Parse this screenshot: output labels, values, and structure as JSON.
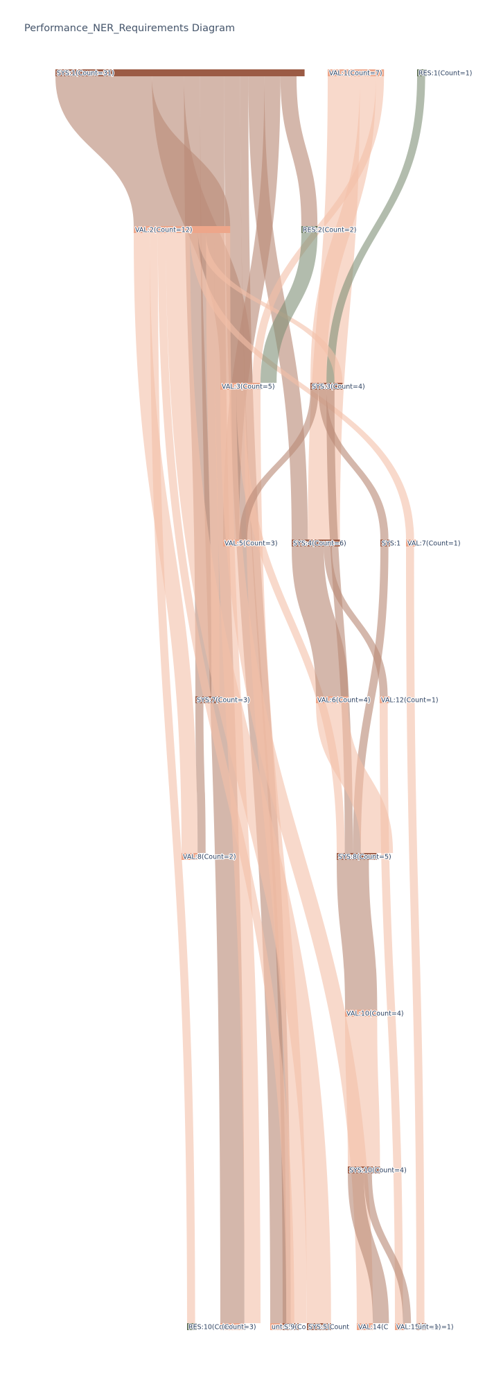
{
  "title": "Performance_NER_Requirements Diagram",
  "colors": {
    "SYS": "#9b5b45",
    "VAL": "#eda68a",
    "RES": "#5d6e53",
    "link_SYS": "#b98a78",
    "link_VAL": "#f3bfa8",
    "link_VAL_dark": "#ee9f7c",
    "link_RES": "#7f8f76"
  },
  "nodes": [
    {
      "id": "SYS1",
      "label": "SYS:1(Count=31)",
      "type": "SYS",
      "count": 31,
      "level": 0
    },
    {
      "id": "VAL1",
      "label": "VAL:1(Count=7)",
      "type": "VAL",
      "count": 7,
      "level": 0
    },
    {
      "id": "RES1",
      "label": "RES:1(Count=1)",
      "type": "RES",
      "count": 1,
      "level": 0
    },
    {
      "id": "VAL2",
      "label": "VAL:2(Count=12)",
      "type": "VAL",
      "count": 12,
      "level": 1
    },
    {
      "id": "RES2",
      "label": "RES:2(Count=2)",
      "type": "RES",
      "count": 2,
      "level": 1
    },
    {
      "id": "VAL3",
      "label": "VAL:3(Count=5)",
      "type": "VAL",
      "count": 5,
      "level": 2
    },
    {
      "id": "SYS3",
      "label": "SYS:3(Count=4)",
      "type": "SYS",
      "count": 4,
      "level": 2
    },
    {
      "id": "VAL5",
      "label": "VAL:5(Count=3)",
      "type": "VAL",
      "count": 3,
      "level": 3
    },
    {
      "id": "SYS4",
      "label": "SYS:4(Count=6)",
      "type": "SYS",
      "count": 6,
      "level": 3
    },
    {
      "id": "SYS1b",
      "label": "SYS:1",
      "type": "SYS",
      "count": 1,
      "level": 3
    },
    {
      "id": "VAL7",
      "label": "VAL:7(Count=1)",
      "type": "VAL",
      "count": 1,
      "level": 3
    },
    {
      "id": "SYS7",
      "label": "SYS:7(Count=3)",
      "type": "SYS",
      "count": 3,
      "level": 4
    },
    {
      "id": "VAL6",
      "label": "VAL:6(Count=4)",
      "type": "VAL",
      "count": 4,
      "level": 4
    },
    {
      "id": "VAL12",
      "label": "VAL:12(Count=1)",
      "type": "VAL",
      "count": 1,
      "level": 4
    },
    {
      "id": "VAL8",
      "label": "VAL:8(Count=2)",
      "type": "VAL",
      "count": 2,
      "level": 5
    },
    {
      "id": "SYS8",
      "label": "SYS:8(Count=5)",
      "type": "SYS",
      "count": 5,
      "level": 5
    },
    {
      "id": "VAL10",
      "label": "VAL:10(Count=4)",
      "type": "VAL",
      "count": 4,
      "level": 6
    },
    {
      "id": "SYS10",
      "label": "SYS:10(Count=4)",
      "type": "SYS",
      "count": 4,
      "level": 7
    },
    {
      "id": "RES10",
      "label": "RES:10(Count=1)",
      "type": "RES",
      "count": 1,
      "level": 8
    },
    {
      "id": "BA",
      "label": "(Count=3)",
      "type": "VAL",
      "count": 3,
      "level": 8
    },
    {
      "id": "BB",
      "label": "unt=3)",
      "type": "VAL",
      "count": 3,
      "level": 8
    },
    {
      "id": "BC",
      "label": "S:9(Co",
      "type": "SYS",
      "count": 2,
      "level": 8
    },
    {
      "id": "BD",
      "label": "SYS:5(Count",
      "type": "SYS",
      "count": 3,
      "level": 8
    },
    {
      "id": "BE",
      "label": "VAL:14(C",
      "type": "VAL",
      "count": 2,
      "level": 8
    },
    {
      "id": "BF",
      "label": "VAL:15(Count=1)",
      "type": "VAL",
      "count": 1,
      "level": 8
    },
    {
      "id": "BG",
      "label": "unt=1)",
      "type": "SYS",
      "count": 1,
      "level": 8
    }
  ],
  "links": [
    {
      "source": "SYS1",
      "target": "VAL2",
      "value": 12
    },
    {
      "source": "SYS1",
      "target": "VAL3",
      "value": 4
    },
    {
      "source": "SYS1",
      "target": "SYS7",
      "value": 2
    },
    {
      "source": "SYS1",
      "target": "BA",
      "value": 3
    },
    {
      "source": "SYS1",
      "target": "BB",
      "value": 2
    },
    {
      "source": "SYS1",
      "target": "BC",
      "value": 1
    },
    {
      "source": "SYS1",
      "target": "SYS4",
      "value": 2
    },
    {
      "source": "SYS1",
      "target": "VAL5",
      "value": 2
    },
    {
      "source": "SYS1",
      "target": "RES2",
      "value": 2
    },
    {
      "source": "VAL1",
      "target": "SYS4",
      "value": 4
    },
    {
      "source": "VAL1",
      "target": "SYS3",
      "value": 2
    },
    {
      "source": "VAL1",
      "target": "VAL3",
      "value": 1
    },
    {
      "source": "RES1",
      "target": "SYS3",
      "value": 1
    },
    {
      "source": "VAL2",
      "target": "VAL8",
      "value": 2
    },
    {
      "source": "VAL2",
      "target": "RES10",
      "value": 1
    },
    {
      "source": "VAL2",
      "target": "BB",
      "value": 1
    },
    {
      "source": "VAL2",
      "target": "BD",
      "value": 3
    },
    {
      "source": "VAL2",
      "target": "VAL7",
      "value": 1
    },
    {
      "source": "VAL2",
      "target": "SYS3",
      "value": 1
    },
    {
      "source": "VAL2",
      "target": "SYS7",
      "value": 1
    },
    {
      "source": "VAL2",
      "target": "BA",
      "value": 2
    },
    {
      "source": "RES2",
      "target": "VAL3",
      "value": 2
    },
    {
      "source": "VAL3",
      "target": "BE",
      "value": 2
    },
    {
      "source": "VAL3",
      "target": "SYS8",
      "value": 1
    },
    {
      "source": "VAL3",
      "target": "BC",
      "value": 2
    },
    {
      "source": "SYS3",
      "target": "VAL5",
      "value": 1
    },
    {
      "source": "SYS3",
      "target": "SYS1b",
      "value": 1
    },
    {
      "source": "SYS3",
      "target": "SYS8",
      "value": 1
    },
    {
      "source": "SYS4",
      "target": "VAL6",
      "value": 4
    },
    {
      "source": "SYS4",
      "target": "VAL12",
      "value": 1
    },
    {
      "source": "SYS1b",
      "target": "SYS8",
      "value": 1
    },
    {
      "source": "VAL7",
      "target": "BG",
      "value": 1
    },
    {
      "source": "SYS7",
      "target": "VAL8",
      "value": 1
    },
    {
      "source": "VAL6",
      "target": "SYS8",
      "value": 4
    },
    {
      "source": "VAL12",
      "target": "BF",
      "value": 1
    },
    {
      "source": "SYS8",
      "target": "VAL10",
      "value": 4
    },
    {
      "source": "VAL10",
      "target": "SYS10",
      "value": 4
    },
    {
      "source": "SYS10",
      "target": "BE",
      "value": 2
    },
    {
      "source": "SYS10",
      "target": "BF",
      "value": 1
    }
  ]
}
